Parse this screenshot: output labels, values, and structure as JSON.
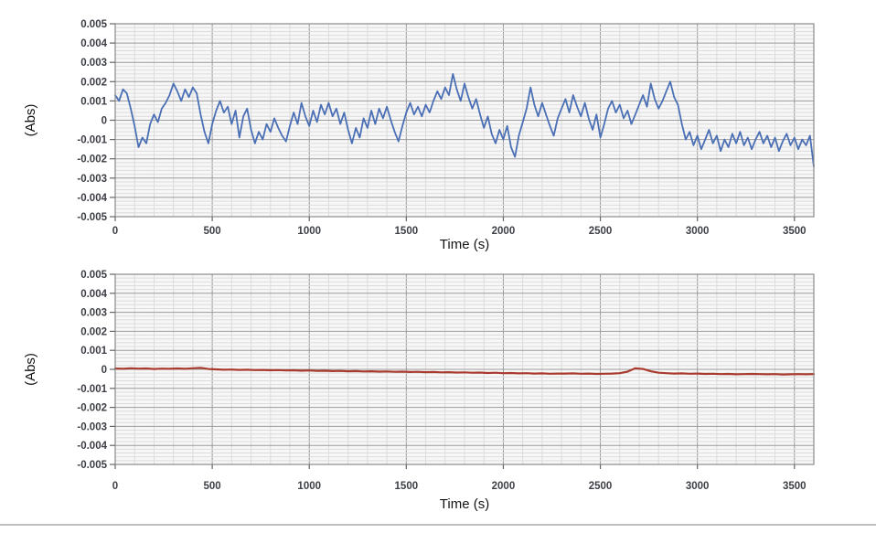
{
  "figure": {
    "description": "Two stacked absorbance noise/stability strip charts"
  },
  "chart_data": [
    {
      "type": "line",
      "title": "",
      "xlabel": "Time (s)",
      "ylabel": "(Abs)",
      "xlim": [
        0,
        3600
      ],
      "ylim": [
        -0.005,
        0.005
      ],
      "x_major": 500,
      "x_minor": 100,
      "y_major": 0.001,
      "y_minor": 0.0002,
      "grid": true,
      "legend": "none",
      "x_tick_values": [
        0,
        500,
        1000,
        1500,
        2000,
        2500,
        3000,
        3500
      ],
      "x_tick_labels": [
        "0",
        "500",
        "1000",
        "1500",
        "2000",
        "2500",
        "3000",
        "3500"
      ],
      "y_tick_values": [
        0.005,
        0.004,
        0.003,
        0.002,
        0.001,
        0,
        -0.001,
        -0.002,
        -0.003,
        -0.004,
        -0.005
      ],
      "y_tick_labels": [
        "0.005",
        "0.004",
        "0.003",
        "0.002",
        "0.001",
        "0",
        "-0.001",
        "-0.002",
        "-0.003",
        "-0.004",
        "-0.005"
      ],
      "series": [
        {
          "color": "#4a6fb5",
          "stroke_width": 1.8,
          "x_start": 0,
          "x_step": 20,
          "values": [
            0.0013,
            0.001,
            0.0016,
            0.0014,
            0.0006,
            -0.0003,
            -0.0014,
            -0.0009,
            -0.0012,
            -0.0002,
            0.0003,
            -0.0001,
            0.0006,
            0.0009,
            0.0013,
            0.0019,
            0.0015,
            0.001,
            0.0016,
            0.0012,
            0.0017,
            0.0014,
            0.0003,
            -0.0006,
            -0.0012,
            -0.0002,
            0.0005,
            0.001,
            0.0004,
            0.0007,
            -0.0002,
            0.0005,
            -0.0009,
            0.0002,
            0.0006,
            -0.0005,
            -0.0012,
            -0.0006,
            -0.001,
            -0.0002,
            -0.0006,
            0.0001,
            -0.0004,
            -0.0008,
            -0.0011,
            -0.0003,
            0.0004,
            -0.0002,
            0.0009,
            0.0002,
            -0.0003,
            0.0005,
            -0.0001,
            0.0008,
            0.0003,
            0.0009,
            0.0002,
            0.0006,
            -0.0002,
            0.0004,
            -0.0005,
            -0.0012,
            -0.0004,
            -0.0009,
            0.0001,
            -0.0004,
            0.0005,
            -0.0002,
            0.0006,
            0.0001,
            0.0007,
            0.0,
            -0.0006,
            -0.0011,
            -0.0003,
            0.0004,
            0.0009,
            0.0003,
            0.0007,
            0.0002,
            0.0008,
            0.0004,
            0.001,
            0.0015,
            0.0011,
            0.0017,
            0.0013,
            0.0024,
            0.0016,
            0.001,
            0.0019,
            0.0012,
            0.0006,
            0.0011,
            0.0003,
            -0.0004,
            0.0002,
            -0.0007,
            -0.0012,
            -0.0005,
            -0.001,
            -0.0003,
            -0.0014,
            -0.0019,
            -0.0008,
            -0.0001,
            0.0006,
            0.0017,
            0.0008,
            0.0002,
            0.0009,
            0.0003,
            -0.0003,
            -0.0008,
            0.0001,
            0.0006,
            0.0011,
            0.0004,
            0.0013,
            0.0007,
            0.0002,
            0.0009,
            0.0001,
            -0.0005,
            0.0003,
            -0.0009,
            -0.0002,
            0.0006,
            0.001,
            0.0004,
            0.0008,
            0.0001,
            0.0005,
            -0.0002,
            0.0003,
            0.0008,
            0.0013,
            0.0007,
            0.0019,
            0.0011,
            0.0006,
            0.001,
            0.0015,
            0.002,
            0.0012,
            0.0008,
            -0.0002,
            -0.001,
            -0.0006,
            -0.0013,
            -0.0008,
            -0.0015,
            -0.001,
            -0.0005,
            -0.0012,
            -0.0008,
            -0.0016,
            -0.001,
            -0.0014,
            -0.0007,
            -0.0012,
            -0.0006,
            -0.0013,
            -0.0009,
            -0.0015,
            -0.001,
            -0.0006,
            -0.0012,
            -0.0008,
            -0.0014,
            -0.0009,
            -0.0016,
            -0.0011,
            -0.0007,
            -0.0013,
            -0.0009,
            -0.0015,
            -0.001,
            -0.0013,
            -0.0008,
            -0.0024
          ]
        }
      ]
    },
    {
      "type": "line",
      "title": "",
      "xlabel": "Time (s)",
      "ylabel": "(Abs)",
      "xlim": [
        0,
        3600
      ],
      "ylim": [
        -0.005,
        0.005
      ],
      "x_major": 500,
      "x_minor": 100,
      "y_major": 0.001,
      "y_minor": 0.0002,
      "grid": true,
      "legend": "none",
      "x_tick_values": [
        0,
        500,
        1000,
        1500,
        2000,
        2500,
        3000,
        3500
      ],
      "x_tick_labels": [
        "0",
        "500",
        "1000",
        "1500",
        "2000",
        "2500",
        "3000",
        "3500"
      ],
      "y_tick_values": [
        0.005,
        0.004,
        0.003,
        0.002,
        0.001,
        0,
        -0.001,
        -0.002,
        -0.003,
        -0.004,
        -0.005
      ],
      "y_tick_labels": [
        "0.005",
        "0.004",
        "0.003",
        "0.002",
        "0.001",
        "0",
        "-0.001",
        "-0.002",
        "-0.003",
        "-0.004",
        "-0.005"
      ],
      "series": [
        {
          "color": "#a93b2e",
          "stroke_width": 2.2,
          "x_start": 0,
          "x_step": 40,
          "values": [
            5e-05,
            3e-05,
            6e-05,
            4e-05,
            5e-05,
            2e-05,
            4e-05,
            3e-05,
            5e-05,
            3e-05,
            6e-05,
            8e-05,
            2e-05,
            0.0,
            -2e-05,
            -1e-05,
            -3e-05,
            -2e-05,
            -4e-05,
            -3e-05,
            -5e-05,
            -4e-05,
            -6e-05,
            -5e-05,
            -7e-05,
            -6e-05,
            -8e-05,
            -7e-05,
            -9e-05,
            -8e-05,
            -0.0001,
            -9e-05,
            -0.00011,
            -0.0001,
            -0.00012,
            -0.00011,
            -0.00013,
            -0.00012,
            -0.00014,
            -0.00013,
            -0.00015,
            -0.00014,
            -0.00016,
            -0.00015,
            -0.00017,
            -0.00016,
            -0.00018,
            -0.00017,
            -0.00019,
            -0.00018,
            -0.0002,
            -0.00019,
            -0.00021,
            -0.0002,
            -0.00022,
            -0.00021,
            -0.00023,
            -0.00022,
            -0.00022,
            -0.00021,
            -0.00023,
            -0.00022,
            -0.00024,
            -0.00023,
            -0.00022,
            -0.0002,
            -0.00012,
            6e-05,
            2e-05,
            -0.0001,
            -0.00018,
            -0.0002,
            -0.00022,
            -0.00021,
            -0.00023,
            -0.00022,
            -0.00024,
            -0.00023,
            -0.00025,
            -0.00024,
            -0.00026,
            -0.00025,
            -0.00024,
            -0.00025,
            -0.00026,
            -0.00025,
            -0.00027,
            -0.00026,
            -0.00025,
            -0.00026,
            -0.00025
          ]
        }
      ]
    }
  ],
  "colors": {
    "series_top": "#4a6fb5",
    "series_bottom": "#a93b2e",
    "grid_major": "#9b9b9b",
    "grid_minor": "#dcdcdc",
    "plot_background": "#f7f7f7",
    "plot_border": "#8a8a8a",
    "tick_text": "#3d3f46",
    "bottom_divider": "#a8a8a8"
  }
}
